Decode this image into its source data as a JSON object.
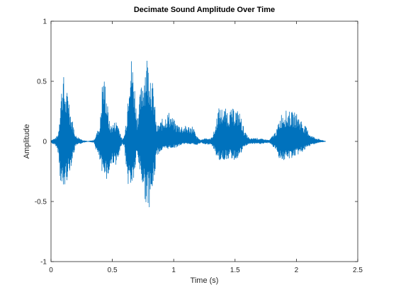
{
  "chart_data": {
    "type": "line",
    "title": "Decimate Sound Amplitude Over Time",
    "xlabel": "Time (s)",
    "ylabel": "Amplitude",
    "xlim": [
      0,
      2.5
    ],
    "ylim": [
      -1,
      1
    ],
    "grid": false,
    "legend": "none",
    "line_color": "#0072BD",
    "x_ticks": [
      0,
      0.5,
      1,
      1.5,
      2,
      2.5
    ],
    "x_tick_labels": [
      "0",
      "0.5",
      "1",
      "1.5",
      "2",
      "2.5"
    ],
    "y_ticks": [
      -1,
      -0.5,
      0,
      0.5,
      1
    ],
    "y_tick_labels": [
      "-1",
      "-0.5",
      "0",
      "0.5",
      "1"
    ],
    "series": [
      {
        "x_start": 0,
        "x_end": 2.24,
        "envelope": {
          "t": [
            0,
            0.04,
            0.06,
            0.08,
            0.1,
            0.12,
            0.14,
            0.16,
            0.2,
            0.26,
            0.3,
            0.35,
            0.4,
            0.42,
            0.44,
            0.46,
            0.48,
            0.5,
            0.54,
            0.58,
            0.6,
            0.62,
            0.64,
            0.66,
            0.68,
            0.7,
            0.74,
            0.78,
            0.8,
            0.82,
            0.84,
            0.86,
            0.9,
            0.96,
            1.02,
            1.08,
            1.12,
            1.16,
            1.18,
            1.22,
            1.26,
            1.3,
            1.32,
            1.34,
            1.36,
            1.4,
            1.46,
            1.5,
            1.54,
            1.56,
            1.58,
            1.62,
            1.66,
            1.72,
            1.78,
            1.84,
            1.86,
            1.88,
            1.9,
            1.94,
            2.0,
            2.06,
            2.12,
            2.18,
            2.24
          ],
          "upper": [
            0.01,
            0.03,
            0.07,
            0.4,
            0.58,
            0.38,
            0.45,
            0.25,
            0.05,
            0.01,
            0.0,
            0.01,
            0.15,
            0.55,
            0.52,
            0.32,
            0.13,
            0.15,
            0.18,
            0.01,
            0.06,
            0.25,
            0.73,
            0.7,
            0.51,
            0.2,
            0.5,
            0.74,
            0.68,
            0.55,
            0.4,
            0.12,
            0.18,
            0.25,
            0.15,
            0.13,
            0.13,
            0.13,
            0.05,
            0.01,
            0.03,
            0.02,
            0.06,
            0.12,
            0.28,
            0.28,
            0.26,
            0.28,
            0.24,
            0.16,
            0.08,
            0.02,
            0.03,
            0.02,
            0.01,
            0.1,
            0.18,
            0.24,
            0.26,
            0.25,
            0.24,
            0.15,
            0.05,
            0.02,
            0.0
          ],
          "lower": [
            -0.01,
            -0.04,
            -0.1,
            -0.38,
            -0.45,
            -0.35,
            -0.3,
            -0.22,
            -0.04,
            -0.01,
            -0.0,
            -0.01,
            -0.18,
            -0.32,
            -0.25,
            -0.35,
            -0.25,
            -0.18,
            -0.2,
            -0.01,
            -0.05,
            -0.35,
            -0.38,
            -0.38,
            -0.3,
            -0.1,
            -0.35,
            -0.55,
            -0.55,
            -0.48,
            -0.35,
            -0.12,
            -0.08,
            -0.06,
            -0.05,
            -0.02,
            -0.02,
            -0.02,
            -0.04,
            -0.01,
            -0.03,
            -0.02,
            -0.05,
            -0.1,
            -0.16,
            -0.16,
            -0.14,
            -0.16,
            -0.12,
            -0.08,
            -0.04,
            -0.02,
            -0.02,
            -0.02,
            -0.01,
            -0.08,
            -0.14,
            -0.16,
            -0.16,
            -0.15,
            -0.12,
            -0.08,
            -0.03,
            -0.01,
            -0.0
          ]
        }
      }
    ]
  }
}
